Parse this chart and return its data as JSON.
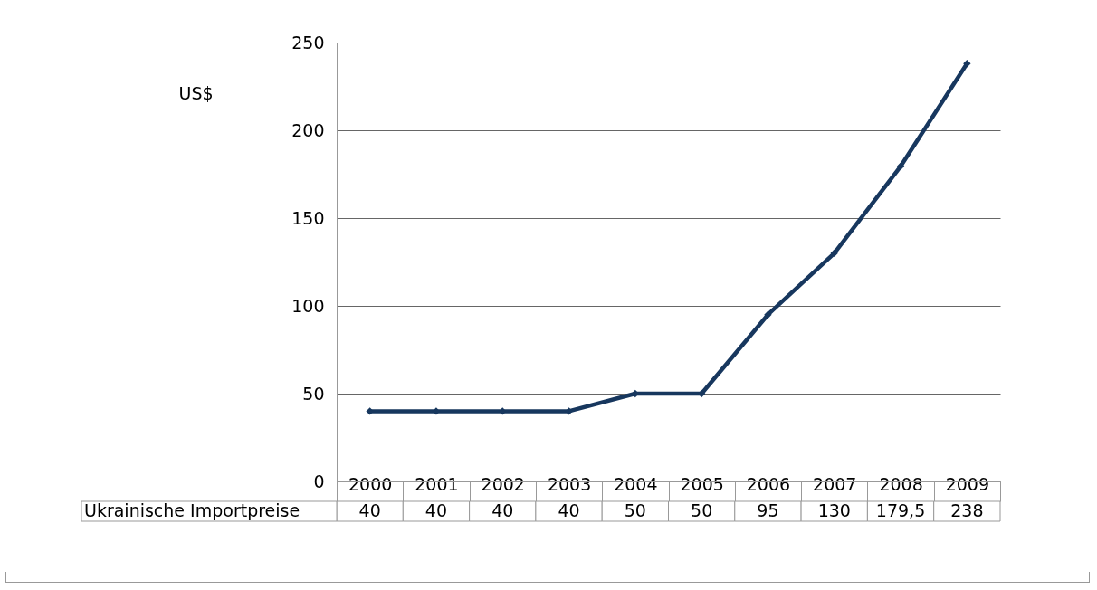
{
  "chart_data": {
    "type": "line",
    "ylabel": "US$",
    "categories": [
      "2000",
      "2001",
      "2002",
      "2003",
      "2004",
      "2005",
      "2006",
      "2007",
      "2008",
      "2009"
    ],
    "series": [
      {
        "name": "Ukrainische Importpreise",
        "color": "#17375e",
        "values": [
          40,
          40,
          40,
          40,
          50,
          50,
          95,
          130,
          179.5,
          238
        ],
        "value_labels": [
          "40",
          "40",
          "40",
          "40",
          "50",
          "50",
          "95",
          "130",
          "179,5",
          "238"
        ]
      }
    ],
    "ylim": [
      0,
      250
    ],
    "yticks": [
      0,
      50,
      100,
      150,
      200,
      250
    ],
    "grid": "y",
    "marker": "diamond",
    "line_style": "solid"
  }
}
